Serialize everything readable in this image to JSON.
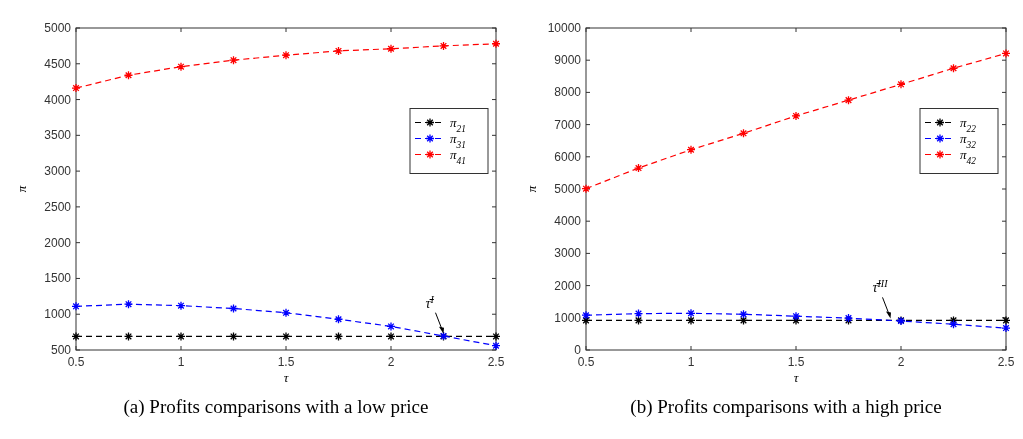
{
  "chart_data": [
    {
      "type": "line",
      "title": "(a) Profits comparisons with a low price",
      "xlabel": "τ",
      "ylabel": "π",
      "x": [
        0.5,
        0.75,
        1,
        1.25,
        1.5,
        1.75,
        2,
        2.25,
        2.5
      ],
      "xlim": [
        0.5,
        2.5
      ],
      "xticks": [
        0.5,
        1,
        1.5,
        2,
        2.5
      ],
      "ylim": [
        500,
        5000
      ],
      "yticks": [
        500,
        1000,
        1500,
        2000,
        2500,
        3000,
        3500,
        4000,
        4500,
        5000
      ],
      "marker": "cross",
      "line_style": "dashed",
      "legend": "right",
      "grid": false,
      "series": [
        {
          "name": "π$_{21}$",
          "color": "#000000",
          "values": [
            690,
            690,
            690,
            690,
            690,
            690,
            690,
            690,
            690
          ]
        },
        {
          "name": "π$_{31}$",
          "color": "#0000ff",
          "values": [
            1110,
            1140,
            1120,
            1080,
            1020,
            930,
            830,
            695,
            560
          ]
        },
        {
          "name": "π$_{41}$",
          "color": "#ff0000",
          "values": [
            4160,
            4340,
            4460,
            4550,
            4620,
            4680,
            4710,
            4750,
            4780
          ]
        }
      ],
      "annotations": [
        {
          "text": "τ̄$^{I}$",
          "x": 2.25,
          "y": 700
        }
      ]
    },
    {
      "type": "line",
      "title": "(b) Profits comparisons with a high price",
      "xlabel": "τ",
      "ylabel": "π",
      "x": [
        0.5,
        0.75,
        1,
        1.25,
        1.5,
        1.75,
        2,
        2.25,
        2.5
      ],
      "xlim": [
        0.5,
        2.5
      ],
      "xticks": [
        0.5,
        1,
        1.5,
        2,
        2.5
      ],
      "ylim": [
        0,
        10000
      ],
      "yticks": [
        0,
        1000,
        2000,
        3000,
        4000,
        5000,
        6000,
        7000,
        8000,
        9000,
        10000
      ],
      "marker": "cross",
      "line_style": "dashed",
      "legend": "right",
      "grid": false,
      "series": [
        {
          "name": "π$_{22}$",
          "color": "#000000",
          "values": [
            920,
            920,
            920,
            920,
            920,
            920,
            920,
            920,
            920
          ]
        },
        {
          "name": "π$_{32}$",
          "color": "#0000ff",
          "values": [
            1080,
            1130,
            1140,
            1110,
            1050,
            990,
            900,
            800,
            680
          ]
        },
        {
          "name": "π$_{42}$",
          "color": "#ff0000",
          "values": [
            5010,
            5650,
            6220,
            6730,
            7270,
            7760,
            8250,
            8750,
            9210
          ]
        }
      ],
      "annotations": [
        {
          "text": "τ̄$^{III}$",
          "x": 1.95,
          "y": 920
        }
      ]
    }
  ]
}
